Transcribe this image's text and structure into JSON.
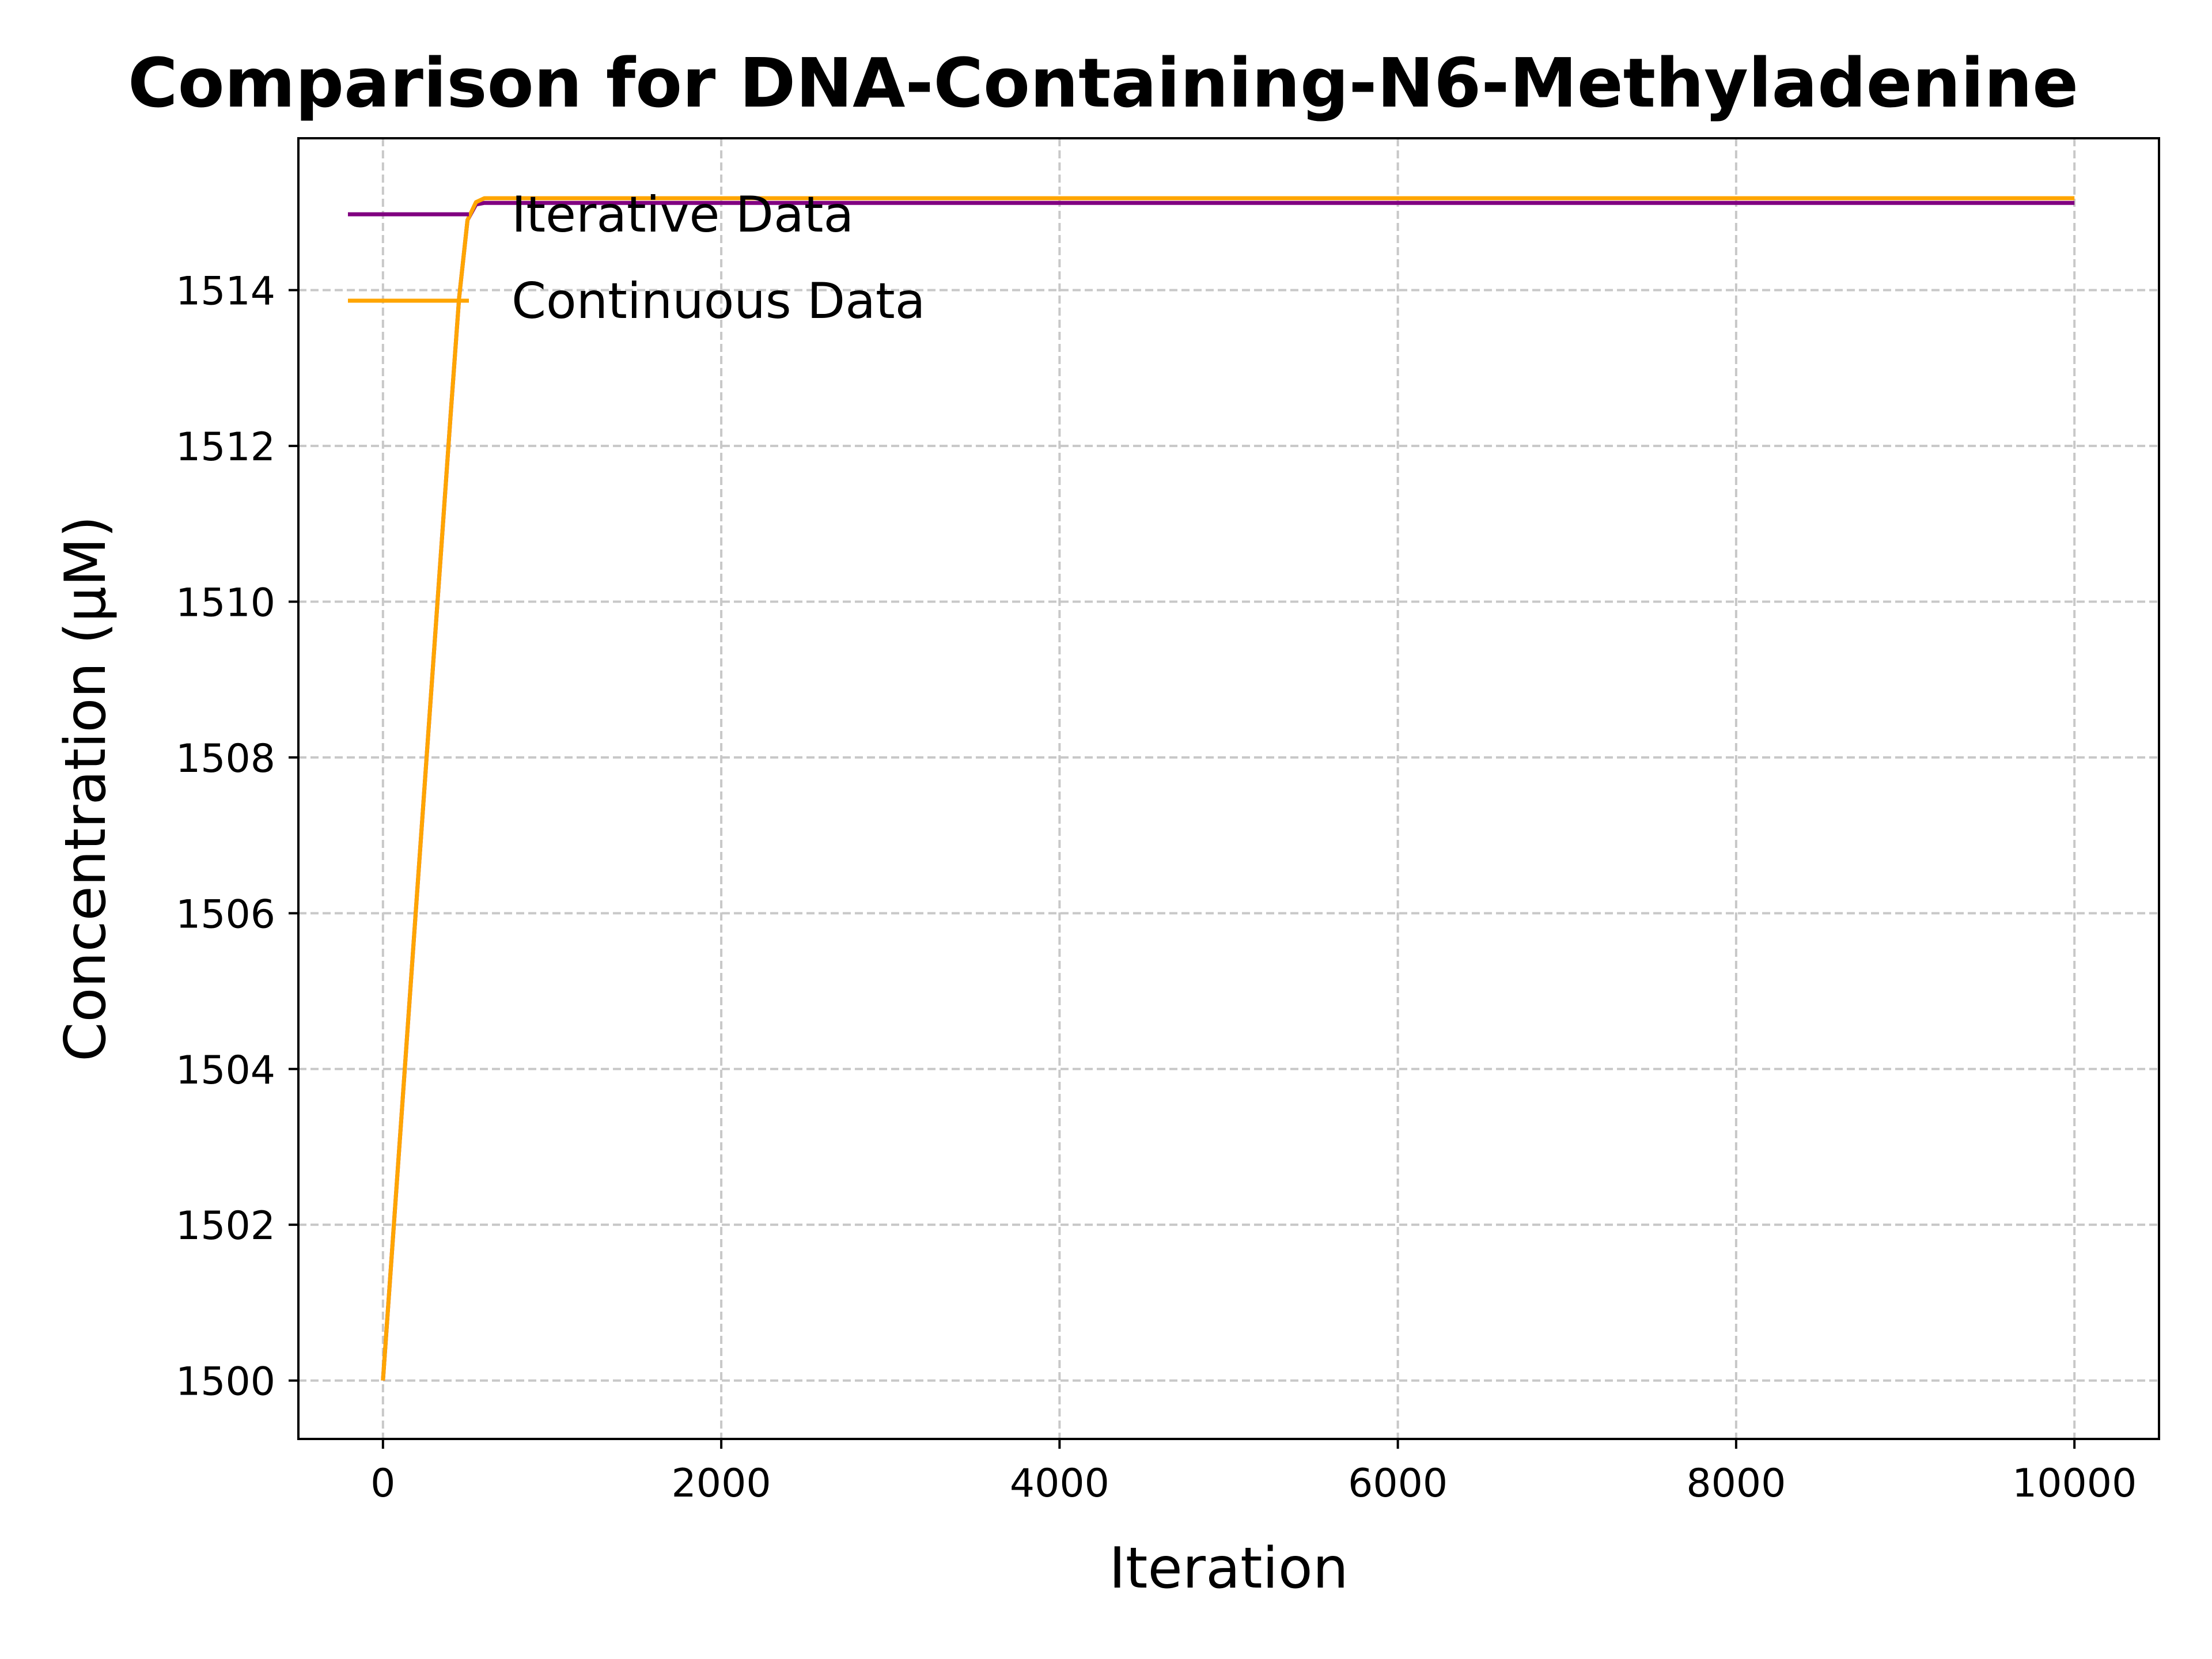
{
  "chart_data": {
    "type": "line",
    "title": "Comparison for DNA-Containing-N6-Methyladenine",
    "xlabel": "Iteration",
    "ylabel": "Concentration (μM)",
    "xlim": [
      -500,
      10500
    ],
    "ylim": [
      1499.25,
      1515.95
    ],
    "xticks": [
      0,
      2000,
      4000,
      6000,
      8000,
      10000
    ],
    "xtick_labels": [
      "0",
      "2000",
      "4000",
      "6000",
      "8000",
      "10000"
    ],
    "yticks": [
      1500,
      1502,
      1504,
      1506,
      1508,
      1510,
      1512,
      1514
    ],
    "ytick_labels": [
      "1500",
      "1502",
      "1504",
      "1506",
      "1508",
      "1510",
      "1512",
      "1514"
    ],
    "grid": true,
    "legend_position": "upper-left",
    "series": [
      {
        "name": "Iterative Data",
        "color": "#800080",
        "x": [
          0,
          100,
          200,
          300,
          400,
          450,
          500,
          550,
          600,
          700,
          1000,
          2000,
          4000,
          6000,
          8000,
          10000
        ],
        "y": [
          1500.0,
          1503.1,
          1506.2,
          1509.3,
          1512.4,
          1513.9,
          1514.9,
          1515.1,
          1515.12,
          1515.12,
          1515.12,
          1515.12,
          1515.12,
          1515.12,
          1515.12,
          1515.12
        ]
      },
      {
        "name": "Continuous Data",
        "color": "#FFA500",
        "x": [
          0,
          100,
          200,
          300,
          400,
          450,
          500,
          550,
          600,
          700,
          1000,
          2000,
          4000,
          6000,
          8000,
          10000
        ],
        "y": [
          1500.0,
          1503.1,
          1506.2,
          1509.3,
          1512.4,
          1513.9,
          1514.9,
          1515.13,
          1515.18,
          1515.18,
          1515.18,
          1515.18,
          1515.18,
          1515.18,
          1515.18,
          1515.18
        ]
      }
    ]
  }
}
